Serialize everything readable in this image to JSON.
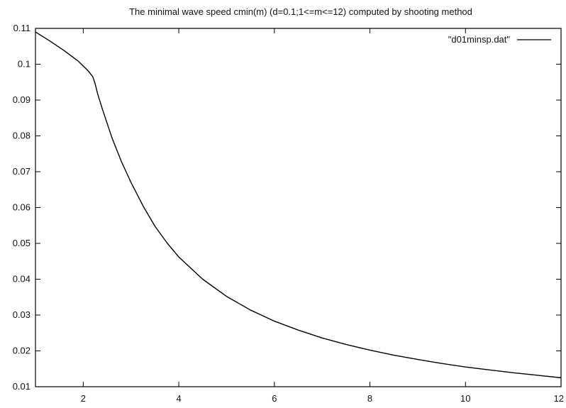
{
  "chart_data": {
    "type": "line",
    "title": "The minimal wave speed cmin(m) (d=0.1;1<=m<=12) computed by shooting method",
    "xlabel": "",
    "ylabel": "",
    "xlim": [
      1,
      12
    ],
    "ylim": [
      0.01,
      0.11
    ],
    "x_ticks": [
      {
        "value": 2,
        "label": "2"
      },
      {
        "value": 4,
        "label": "4"
      },
      {
        "value": 6,
        "label": "6"
      },
      {
        "value": 8,
        "label": "8"
      },
      {
        "value": 10,
        "label": "10"
      },
      {
        "value": 12,
        "label": "12"
      }
    ],
    "y_ticks": [
      {
        "value": 0.01,
        "label": "0.01"
      },
      {
        "value": 0.02,
        "label": "0.02"
      },
      {
        "value": 0.03,
        "label": "0.03"
      },
      {
        "value": 0.04,
        "label": "0.04"
      },
      {
        "value": 0.05,
        "label": "0.05"
      },
      {
        "value": 0.06,
        "label": "0.06"
      },
      {
        "value": 0.07,
        "label": "0.07"
      },
      {
        "value": 0.08,
        "label": "0.08"
      },
      {
        "value": 0.09,
        "label": "0.09"
      },
      {
        "value": 0.1,
        "label": "0.1"
      },
      {
        "value": 0.11,
        "label": "0.11"
      }
    ],
    "grid": false,
    "legend_position": "top-right",
    "series": [
      {
        "name": "\"d01minsp.dat\"",
        "color": "#000000",
        "x": [
          1.0,
          1.3,
          1.6,
          1.9,
          2.1,
          2.2,
          2.25,
          2.3,
          2.4,
          2.5,
          2.6,
          2.8,
          3.0,
          3.25,
          3.5,
          3.75,
          4.0,
          4.5,
          5.0,
          5.5,
          6.0,
          6.5,
          7.0,
          7.5,
          8.0,
          8.5,
          9.0,
          9.5,
          10.0,
          10.5,
          11.0,
          11.5,
          12.0
        ],
        "y": [
          0.109,
          0.1065,
          0.1038,
          0.1008,
          0.0982,
          0.0965,
          0.0945,
          0.0918,
          0.0875,
          0.0835,
          0.0795,
          0.0728,
          0.067,
          0.0605,
          0.0548,
          0.0502,
          0.0462,
          0.04,
          0.0352,
          0.0314,
          0.0283,
          0.0258,
          0.0236,
          0.0218,
          0.0202,
          0.0188,
          0.0176,
          0.0165,
          0.0155,
          0.0147,
          0.0139,
          0.0132,
          0.0125
        ]
      }
    ]
  }
}
